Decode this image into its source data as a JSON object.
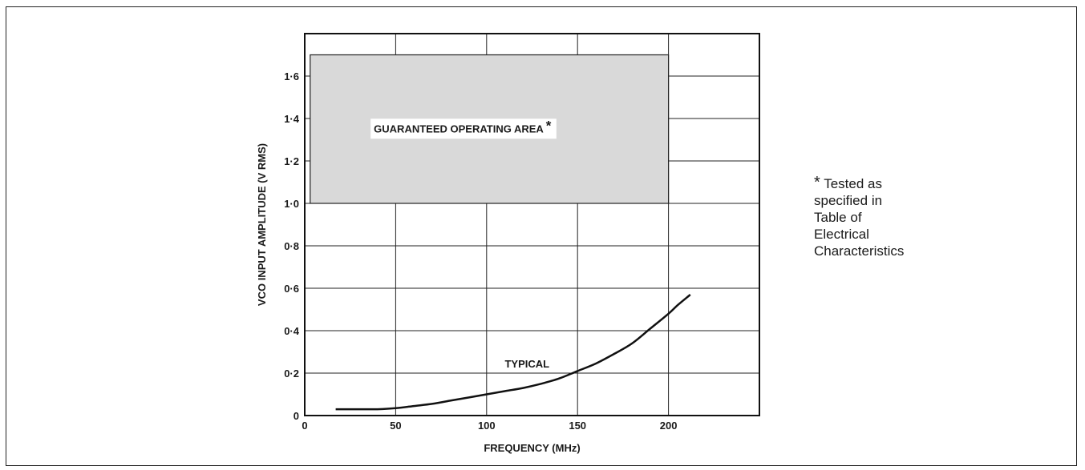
{
  "chart_data": {
    "type": "line",
    "title": "",
    "xlabel": "FREQUENCY (MHz)",
    "ylabel": "VCO INPUT AMPLITUDE (V RMS)",
    "xlim": [
      0,
      250
    ],
    "ylim": [
      0,
      1.8
    ],
    "x_ticks": [
      0,
      50,
      100,
      150,
      200
    ],
    "x_tick_labels": [
      "0",
      "50",
      "100",
      "150",
      "200"
    ],
    "y_ticks": [
      0,
      0.2,
      0.4,
      0.6,
      0.8,
      1.0,
      1.2,
      1.4,
      1.6
    ],
    "y_tick_labels": [
      "0",
      "0·2",
      "0·4",
      "0·6",
      "0·8",
      "1·0",
      "1·2",
      "1·4",
      "1·6"
    ],
    "grid": true,
    "region": {
      "label": "GUARANTEED OPERATING AREA",
      "marker": "*",
      "x": [
        3,
        200
      ],
      "y": [
        1.0,
        1.7
      ],
      "color": "#d9d9d9"
    },
    "series": [
      {
        "name": "TYPICAL",
        "x": [
          17,
          30,
          40,
          50,
          60,
          70,
          80,
          90,
          100,
          110,
          120,
          130,
          140,
          150,
          160,
          170,
          180,
          190,
          200,
          205,
          212
        ],
        "y": [
          0.03,
          0.03,
          0.03,
          0.035,
          0.045,
          0.055,
          0.07,
          0.085,
          0.1,
          0.115,
          0.13,
          0.15,
          0.175,
          0.21,
          0.245,
          0.29,
          0.34,
          0.41,
          0.48,
          0.52,
          0.57
        ]
      }
    ]
  },
  "footnote": {
    "marker": "*",
    "lines": [
      "Tested as",
      "specified in",
      "Table of",
      "Electrical",
      "Characteristics"
    ]
  }
}
